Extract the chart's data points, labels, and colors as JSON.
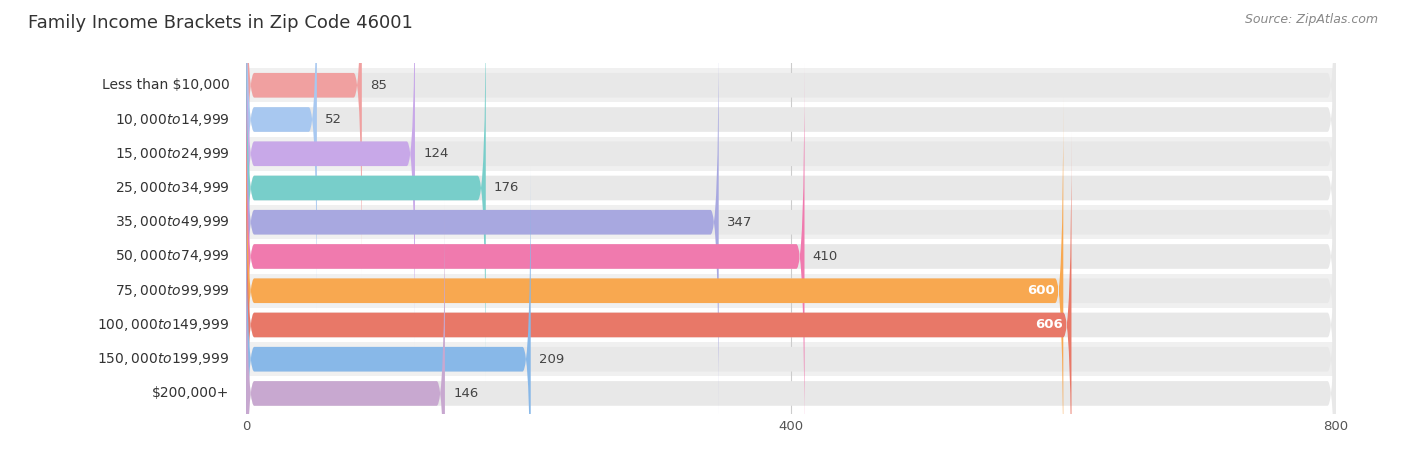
{
  "title": "Family Income Brackets in Zip Code 46001",
  "source": "Source: ZipAtlas.com",
  "categories": [
    "Less than $10,000",
    "$10,000 to $14,999",
    "$15,000 to $24,999",
    "$25,000 to $34,999",
    "$35,000 to $49,999",
    "$50,000 to $74,999",
    "$75,000 to $99,999",
    "$100,000 to $149,999",
    "$150,000 to $199,999",
    "$200,000+"
  ],
  "values": [
    85,
    52,
    124,
    176,
    347,
    410,
    600,
    606,
    209,
    146
  ],
  "bar_colors": [
    "#F0A0A0",
    "#A8C8F0",
    "#C8A8E8",
    "#78CECA",
    "#A8A8E0",
    "#F07AAE",
    "#F8A850",
    "#E87868",
    "#88B8E8",
    "#C8A8D0"
  ],
  "label_colors": [
    "#555555",
    "#555555",
    "#555555",
    "#555555",
    "#555555",
    "#555555",
    "#ffffff",
    "#ffffff",
    "#555555",
    "#555555"
  ],
  "xlim": [
    0,
    800
  ],
  "xticks": [
    0,
    400,
    800
  ],
  "background_color": "#ffffff",
  "bar_bg_color": "#e8e8e8",
  "row_bg_colors": [
    "#f0f0f0",
    "#ffffff"
  ],
  "title_fontsize": 13,
  "label_fontsize": 10,
  "value_fontsize": 9.5,
  "source_fontsize": 9
}
